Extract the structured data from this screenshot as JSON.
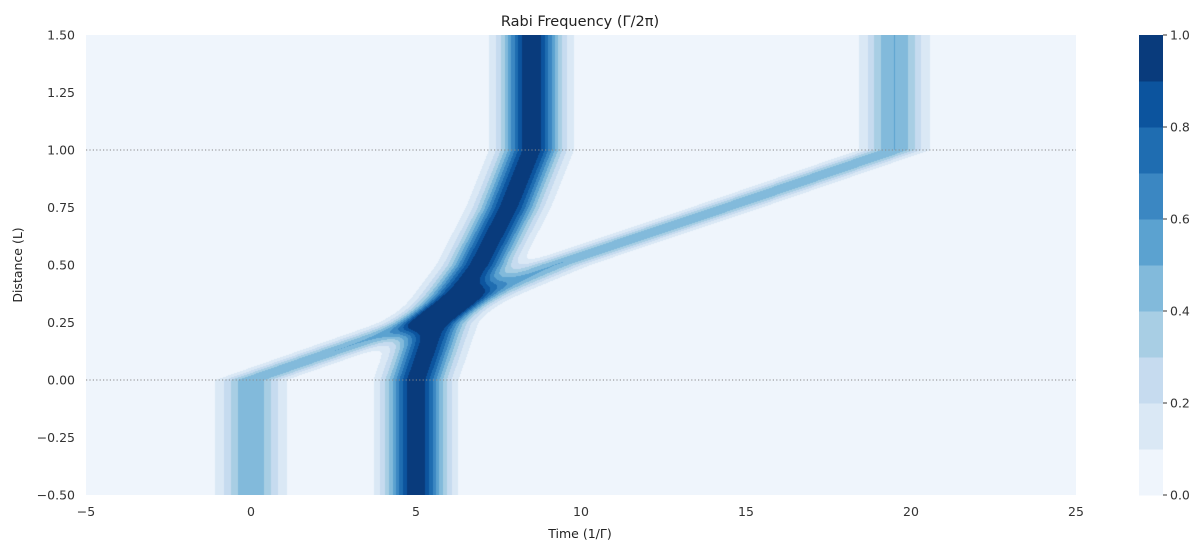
{
  "chart_data": {
    "type": "heatmap",
    "subtype": "filled-contour",
    "title": "Rabi Frequency (Γ/2π)",
    "xlabel": "Time (1/Γ)",
    "ylabel": "Distance (L)",
    "xlim": [
      -5,
      25
    ],
    "ylim": [
      -0.5,
      1.5
    ],
    "xticks": [
      "−5",
      "0",
      "5",
      "10",
      "15",
      "20",
      "25"
    ],
    "xtick_values": [
      -5,
      0,
      5,
      10,
      15,
      20,
      25
    ],
    "yticks": [
      "−0.50",
      "−0.25",
      "0.00",
      "0.25",
      "0.50",
      "0.75",
      "1.00",
      "1.25",
      "1.50"
    ],
    "ytick_values": [
      -0.5,
      -0.25,
      0.0,
      0.25,
      0.5,
      0.75,
      1.0,
      1.25,
      1.5
    ],
    "grid": false,
    "reference_lines": [
      {
        "axis": "y",
        "value": 0.0,
        "style": "dotted",
        "color": "#888888"
      },
      {
        "axis": "y",
        "value": 1.0,
        "style": "dotted",
        "color": "#888888"
      }
    ],
    "colorbar": {
      "colormap": "Blues",
      "range": [
        0.0,
        1.0
      ],
      "levels": [
        0.0,
        0.1,
        0.2,
        0.3,
        0.4,
        0.5,
        0.6,
        0.7,
        0.8,
        0.9,
        1.0
      ],
      "ticks": [
        "0.0",
        "0.2",
        "0.4",
        "0.6",
        "0.8",
        "1.0"
      ],
      "tick_values": [
        0.0,
        0.2,
        0.4,
        0.6,
        0.8,
        1.0
      ],
      "level_colors": [
        "#eff5fc",
        "#dae8f5",
        "#c6dbef",
        "#a8cee4",
        "#82badb",
        "#5ba2d0",
        "#3b87c2",
        "#1f6db1",
        "#0c549e",
        "#093b7c"
      ]
    },
    "pulses": [
      {
        "peak": 1.0,
        "width": 0.6,
        "path": [
          {
            "y": -0.5,
            "t": 5.0
          },
          {
            "y": 0.0,
            "t": 5.0
          },
          {
            "y": 0.25,
            "t": 5.6
          },
          {
            "y": 0.5,
            "t": 6.9
          },
          {
            "y": 0.75,
            "t": 7.8
          },
          {
            "y": 1.0,
            "t": 8.5
          },
          {
            "y": 1.5,
            "t": 8.5
          }
        ]
      },
      {
        "peak": 0.5,
        "width": 0.6,
        "path": [
          {
            "y": -0.5,
            "t": 0.0
          },
          {
            "y": 0.0,
            "t": 0.0
          },
          {
            "y": 0.25,
            "t": 5.0
          },
          {
            "y": 0.5,
            "t": 9.2
          },
          {
            "y": 0.75,
            "t": 14.4
          },
          {
            "y": 1.0,
            "t": 19.5
          },
          {
            "y": 1.5,
            "t": 19.5
          }
        ]
      }
    ]
  }
}
